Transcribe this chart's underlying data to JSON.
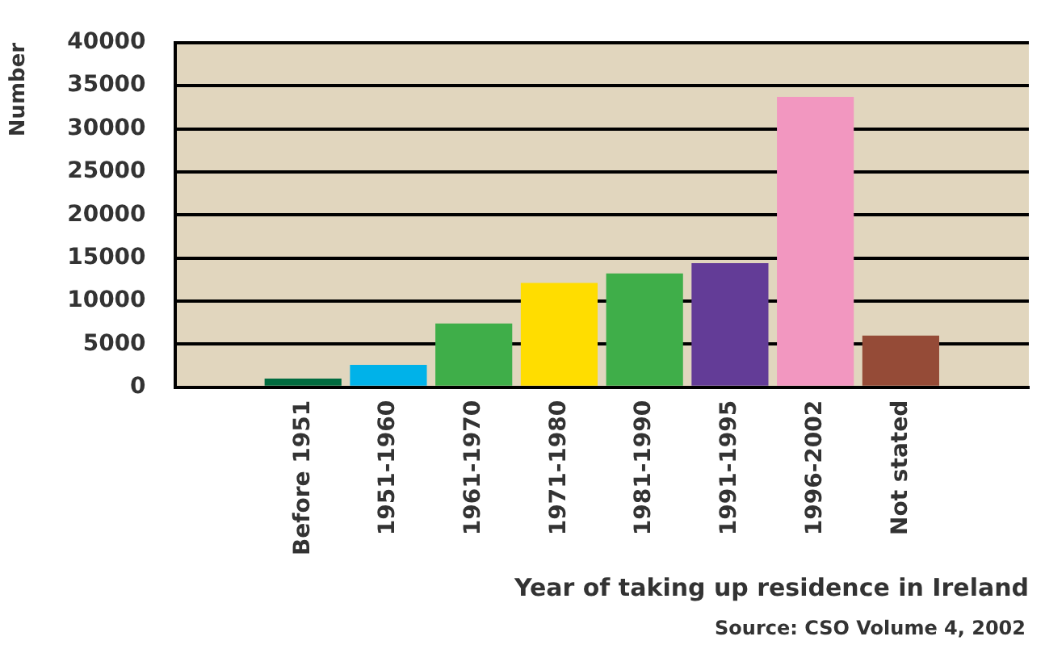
{
  "chart_data": {
    "type": "bar",
    "categories": [
      null,
      "Before 1951",
      "1951-1960",
      "1961-1970",
      "1971-1980",
      "1981-1990",
      "1991-1995",
      "1996-2002",
      "Not stated",
      null
    ],
    "values": [
      null,
      1000,
      2600,
      7400,
      12100,
      13200,
      14400,
      33700,
      6000,
      null
    ],
    "colors": [
      "#ffffff",
      "#006b3f",
      "#00b2e9",
      "#3fae49",
      "#ffdd00",
      "#3fae49",
      "#633c97",
      "#f297c0",
      "#954b37",
      "#ffffff"
    ],
    "xlabel": "Year of taking up residence in Ireland",
    "ylabel": "Number",
    "ylim": [
      0,
      40000
    ],
    "yticks": [
      0,
      5000,
      10000,
      15000,
      20000,
      25000,
      30000,
      35000,
      40000
    ],
    "grid": "y",
    "legend": false,
    "annotations": [
      "Source: CSO Volume 4, 2002"
    ]
  }
}
